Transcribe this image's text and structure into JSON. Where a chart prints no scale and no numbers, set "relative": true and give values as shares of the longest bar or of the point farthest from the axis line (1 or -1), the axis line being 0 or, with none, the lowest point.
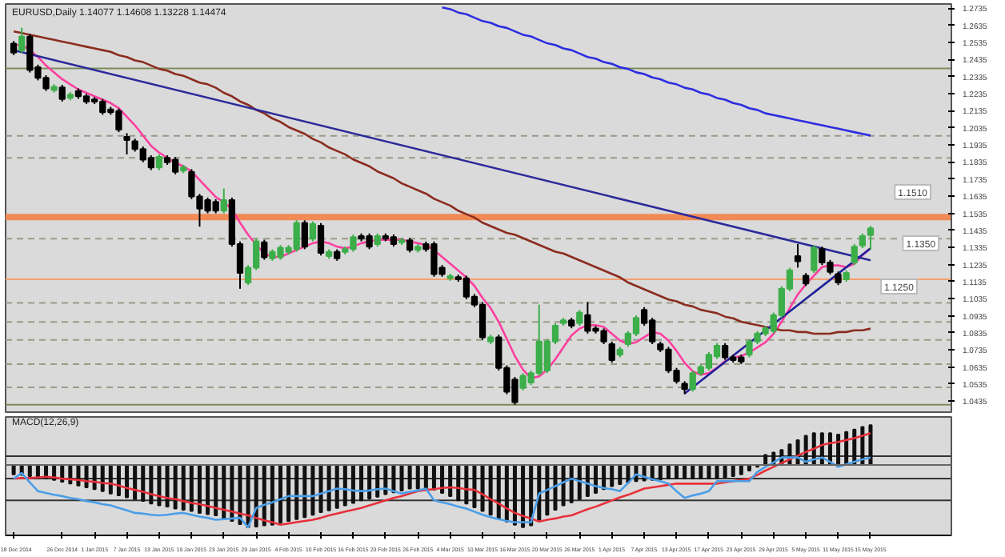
{
  "chart_data": [
    {
      "type": "candlestick",
      "title": "EURUSD,Daily 1.14077 1.14608 1.13228 1.14474",
      "categories": [
        null,
        null,
        null,
        null,
        null,
        null,
        null,
        null,
        null,
        null,
        null,
        null,
        null,
        null,
        null,
        null,
        null,
        null,
        null,
        null,
        null,
        null,
        null,
        null,
        null,
        null,
        null,
        null,
        null,
        null,
        null,
        null,
        null,
        null,
        null,
        null,
        null,
        null,
        null,
        null,
        null,
        null,
        null,
        null,
        null,
        null,
        null,
        null,
        null,
        null,
        null,
        null,
        null,
        null,
        null,
        null,
        null,
        null,
        null,
        null,
        null,
        null,
        null,
        null,
        null,
        null,
        null,
        null,
        null,
        null,
        null,
        null,
        null,
        null,
        null,
        null,
        null,
        null,
        null,
        null,
        null,
        null,
        null,
        null,
        null,
        null,
        null,
        null,
        null,
        null,
        null,
        null,
        null,
        null,
        null,
        null,
        null,
        null,
        null,
        null,
        null,
        null,
        null,
        null,
        null,
        null,
        null
      ],
      "colors": [
        "#000000",
        "#3cae4a",
        "#000000",
        "#000000",
        "#000000",
        "#3cae4a",
        "#000000",
        "#3cae4a",
        "#000000",
        "#000000",
        "#000000",
        "#000000",
        "#000000",
        "#000000",
        "#000000",
        "#000000",
        "#000000",
        "#000000",
        "#3cae4a",
        "#000000",
        "#000000",
        "#3cae4a",
        "#000000",
        "#000000",
        "#000000",
        "#000000",
        "#3cae4a",
        "#000000",
        "#000000",
        "#3cae4a",
        "#3cae4a",
        "#000000",
        "#3cae4a",
        "#3cae4a",
        "#3cae4a",
        "#3cae4a",
        "#000000",
        "#3cae4a",
        "#000000",
        "#3cae4a",
        "#000000",
        "#3cae4a",
        "#3cae4a",
        "#000000",
        "#000000",
        "#3cae4a",
        "#000000",
        "#000000",
        "#3cae4a",
        "#000000",
        "#3cae4a",
        "#000000",
        "#000000",
        "#000000",
        "#3cae4a",
        "#000000",
        "#000000",
        "#000000",
        "#000000",
        "#3cae4a",
        "#000000",
        "#000000",
        "#000000",
        "#3cae4a",
        "#3cae4a",
        "#3cae4a",
        "#3cae4a",
        "#3cae4a",
        "#3cae4a",
        "#000000",
        "#3cae4a",
        "#000000",
        "#000000",
        "#000000",
        "#000000",
        "#3cae4a",
        "#3cae4a",
        "#3cae4a",
        "#000000",
        "#000000",
        "#000000",
        "#000000",
        "#000000",
        "#000000",
        "#3cae4a",
        "#3cae4a",
        "#3cae4a",
        "#3cae4a",
        "#000000",
        "#000000",
        "#000000",
        "#3cae4a",
        "#3cae4a",
        "#3cae4a",
        "#3cae4a",
        "#3cae4a",
        "#3cae4a",
        "#000000",
        "#000000",
        "#3cae4a",
        "#000000",
        "#000000",
        "#000000",
        "#3cae4a",
        "#3cae4a",
        "#3cae4a",
        "#3cae4a"
      ],
      "ohlc": [
        [
          1.2528,
          1.2543,
          1.2461,
          1.2476
        ],
        [
          1.2488,
          1.2621,
          1.2473,
          1.2569
        ],
        [
          1.2569,
          1.2584,
          1.2359,
          1.2374
        ],
        [
          1.239,
          1.2405,
          1.2313,
          1.2328
        ],
        [
          1.2328,
          1.2343,
          1.2251,
          1.2266
        ],
        [
          1.2257,
          1.229,
          1.2242,
          1.2275
        ],
        [
          1.2272,
          1.2287,
          1.2189,
          1.2204
        ],
        [
          1.2211,
          1.2244,
          1.2196,
          1.2229
        ],
        [
          1.2251,
          1.2266,
          1.2205,
          1.222
        ],
        [
          1.222,
          1.2235,
          1.2174,
          1.2189
        ],
        [
          1.2201,
          1.2216,
          1.2174,
          1.2189
        ],
        [
          1.2189,
          1.2204,
          1.2112,
          1.2127
        ],
        [
          1.2143,
          1.2158,
          1.2112,
          1.2127
        ],
        [
          1.2133,
          1.2148,
          1.201,
          1.2025
        ],
        [
          1.1982,
          1.2004,
          1.188,
          1.1964
        ],
        [
          1.1957,
          1.1972,
          1.1896,
          1.1911
        ],
        [
          1.1911,
          1.1926,
          1.1834,
          1.1849
        ],
        [
          1.1859,
          1.1874,
          1.1788,
          1.1803
        ],
        [
          1.1803,
          1.188,
          1.1788,
          1.1865
        ],
        [
          1.1859,
          1.1874,
          1.1819,
          1.1834
        ],
        [
          1.1849,
          1.1864,
          1.1763,
          1.1778
        ],
        [
          1.1785,
          1.1818,
          1.177,
          1.1803
        ],
        [
          1.1778,
          1.1793,
          1.1618,
          1.1633
        ],
        [
          1.1633,
          1.1648,
          1.1457,
          1.1562
        ],
        [
          1.1612,
          1.1627,
          1.1535,
          1.155
        ],
        [
          1.1602,
          1.1617,
          1.1535,
          1.155
        ],
        [
          1.155,
          1.168,
          1.1535,
          1.1612
        ],
        [
          1.1612,
          1.1627,
          1.134,
          1.1355
        ],
        [
          1.1355,
          1.137,
          1.1093,
          1.1186
        ],
        [
          1.113,
          1.1232,
          1.1115,
          1.1217
        ],
        [
          1.1217,
          1.1386,
          1.1202,
          1.1371
        ],
        [
          1.1365,
          1.138,
          1.1263,
          1.1278
        ],
        [
          1.1272,
          1.1324,
          1.1257,
          1.1309
        ],
        [
          1.1278,
          1.1349,
          1.1263,
          1.1334
        ],
        [
          1.1309,
          1.1349,
          1.1294,
          1.1334
        ],
        [
          1.1325,
          1.1494,
          1.131,
          1.1479
        ],
        [
          1.1479,
          1.1494,
          1.1325,
          1.134
        ],
        [
          1.1386,
          1.1488,
          1.1371,
          1.1473
        ],
        [
          1.1463,
          1.1478,
          1.1288,
          1.1303
        ],
        [
          1.1284,
          1.1324,
          1.1269,
          1.1309
        ],
        [
          1.1309,
          1.1324,
          1.1257,
          1.1272
        ],
        [
          1.1309,
          1.134,
          1.1294,
          1.1325
        ],
        [
          1.1325,
          1.1411,
          1.131,
          1.1396
        ],
        [
          1.1402,
          1.1417,
          1.1371,
          1.1386
        ],
        [
          1.1402,
          1.1417,
          1.1325,
          1.134
        ],
        [
          1.1355,
          1.1417,
          1.134,
          1.1402
        ],
        [
          1.1402,
          1.1417,
          1.1371,
          1.1386
        ],
        [
          1.1396,
          1.1411,
          1.134,
          1.1355
        ],
        [
          1.1365,
          1.1392,
          1.135,
          1.1377
        ],
        [
          1.1377,
          1.1392,
          1.1306,
          1.1321
        ],
        [
          1.1321,
          1.1355,
          1.1306,
          1.134
        ],
        [
          1.1355,
          1.137,
          1.131,
          1.1325
        ],
        [
          1.1355,
          1.137,
          1.1164,
          1.1179
        ],
        [
          1.1217,
          1.1232,
          1.1164,
          1.1179
        ],
        [
          1.1155,
          1.1182,
          1.114,
          1.1167
        ],
        [
          1.1161,
          1.1176,
          1.1134,
          1.1149
        ],
        [
          1.1155,
          1.117,
          1.1032,
          1.1047
        ],
        [
          1.1047,
          1.1062,
          1.0985,
          1.1
        ],
        [
          1.1,
          1.1015,
          1.0794,
          1.0809
        ],
        [
          1.0784,
          1.0824,
          1.0769,
          1.0809
        ],
        [
          1.0809,
          1.0824,
          1.0615,
          1.063
        ],
        [
          1.063,
          1.0645,
          1.0476,
          1.0491
        ],
        [
          1.0562,
          1.0577,
          1.0414,
          1.0429
        ],
        [
          1.0513,
          1.0599,
          1.0498,
          1.0584
        ],
        [
          1.0544,
          1.0614,
          1.0529,
          1.0599
        ],
        [
          1.0599,
          1.1,
          1.0584,
          1.0784
        ],
        [
          1.0615,
          1.0799,
          1.06,
          1.0784
        ],
        [
          1.0784,
          1.0892,
          1.0769,
          1.0877
        ],
        [
          1.0892,
          1.0923,
          1.0877,
          1.0908
        ],
        [
          1.0908,
          1.0923,
          1.0862,
          1.0877
        ],
        [
          1.0892,
          1.0969,
          1.0877,
          1.0954
        ],
        [
          1.0939,
          1.1016,
          1.0831,
          1.0846
        ],
        [
          1.0861,
          1.0876,
          1.0831,
          1.0846
        ],
        [
          1.0846,
          1.0861,
          1.0769,
          1.0784
        ],
        [
          1.0769,
          1.0784,
          1.0661,
          1.0676
        ],
        [
          1.0707,
          1.0753,
          1.0692,
          1.0738
        ],
        [
          1.0769,
          1.0846,
          1.0754,
          1.0831
        ],
        [
          1.0831,
          1.0938,
          1.0816,
          1.0923
        ],
        [
          1.097,
          1.0985,
          1.0877,
          1.0892
        ],
        [
          1.0908,
          1.0923,
          1.0769,
          1.0784
        ],
        [
          1.0769,
          1.0784,
          1.0723,
          1.0738
        ],
        [
          1.0738,
          1.0753,
          1.06,
          1.0615
        ],
        [
          1.0615,
          1.063,
          1.0538,
          1.0553
        ],
        [
          1.0537,
          1.0552,
          1.0476,
          1.0506
        ],
        [
          1.0506,
          1.0614,
          1.0491,
          1.0599
        ],
        [
          1.0599,
          1.0651,
          1.0584,
          1.0636
        ],
        [
          1.063,
          1.0722,
          1.0615,
          1.0707
        ],
        [
          1.0698,
          1.0775,
          1.0683,
          1.076
        ],
        [
          1.076,
          1.0775,
          1.0677,
          1.0692
        ],
        [
          1.0692,
          1.0707,
          1.0661,
          1.0676
        ],
        [
          1.0692,
          1.0707,
          1.0652,
          1.0667
        ],
        [
          1.0707,
          1.0799,
          1.0692,
          1.0784
        ],
        [
          1.0784,
          1.0846,
          1.0769,
          1.0831
        ],
        [
          1.0831,
          1.0876,
          1.0816,
          1.0861
        ],
        [
          1.0846,
          1.0954,
          1.0831,
          1.0939
        ],
        [
          1.0939,
          1.1108,
          1.0924,
          1.1093
        ],
        [
          1.1093,
          1.1216,
          1.1078,
          1.1201
        ],
        [
          1.1284,
          1.1355,
          1.1217,
          1.1254
        ],
        [
          1.117,
          1.1185,
          1.1109,
          1.1124
        ],
        [
          1.1201,
          1.1349,
          1.1186,
          1.1334
        ],
        [
          1.1325,
          1.134,
          1.1232,
          1.1247
        ],
        [
          1.1247,
          1.1262,
          1.1177,
          1.1192
        ],
        [
          1.1179,
          1.1194,
          1.1115,
          1.113
        ],
        [
          1.1149,
          1.1201,
          1.1134,
          1.1186
        ],
        [
          1.1247,
          1.1355,
          1.1232,
          1.134
        ],
        [
          1.1346,
          1.1417,
          1.1331,
          1.1402
        ],
        [
          1.14077,
          1.14608,
          1.13228,
          1.14474
        ]
      ],
      "series": [
        {
          "type": "line",
          "color": "#ff3fa0",
          "values": [
            1.252,
            1.252,
            1.249,
            1.245,
            1.24,
            1.236,
            1.232,
            1.229,
            1.226,
            1.224,
            1.222,
            1.22,
            1.218,
            1.215,
            1.21,
            1.205,
            1.199,
            1.193,
            1.189,
            1.186,
            1.183,
            1.181,
            1.178,
            1.173,
            1.168,
            1.163,
            1.16,
            1.156,
            1.148,
            1.141,
            1.135,
            1.13,
            1.128,
            1.128,
            1.13,
            1.132,
            1.134,
            1.136,
            1.137,
            1.136,
            1.134,
            1.133,
            1.134,
            1.136,
            1.137,
            1.138,
            1.138,
            1.138,
            1.138,
            1.137,
            1.136,
            1.135,
            1.132,
            1.128,
            1.124,
            1.12,
            1.116,
            1.111,
            1.104,
            1.098,
            1.09,
            1.08,
            1.07,
            1.062,
            1.057,
            1.058,
            1.062,
            1.068,
            1.075,
            1.082,
            1.086,
            1.088,
            1.088,
            1.087,
            1.083,
            1.079,
            1.077,
            1.078,
            1.081,
            1.084,
            1.083,
            1.079,
            1.073,
            1.066,
            1.061,
            1.059,
            1.06,
            1.063,
            1.067,
            1.069,
            1.07,
            1.072,
            1.075,
            1.078,
            1.083,
            1.09,
            1.098,
            1.106,
            1.112,
            1.117,
            1.122,
            1.123,
            1.123,
            1.122,
            1.124,
            1.129,
            1.133
          ]
        },
        {
          "type": "line",
          "color": "#8b2c1f",
          "values": [
            1.26,
            1.259,
            1.258,
            1.257,
            1.256,
            1.255,
            1.254,
            1.253,
            1.252,
            1.251,
            1.25,
            1.249,
            1.248,
            1.246,
            1.245,
            1.243,
            1.242,
            1.24,
            1.238,
            1.237,
            1.235,
            1.234,
            1.232,
            1.23,
            1.229,
            1.227,
            1.224,
            1.222,
            1.219,
            1.217,
            1.214,
            1.212,
            1.209,
            1.207,
            1.204,
            1.202,
            1.2,
            1.197,
            1.195,
            1.192,
            1.19,
            1.188,
            1.185,
            1.183,
            1.181,
            1.178,
            1.176,
            1.174,
            1.171,
            1.169,
            1.167,
            1.165,
            1.162,
            1.16,
            1.158,
            1.155,
            1.153,
            1.151,
            1.148,
            1.146,
            1.144,
            1.142,
            1.141,
            1.139,
            1.137,
            1.135,
            1.133,
            1.131,
            1.13,
            1.128,
            1.126,
            1.124,
            1.122,
            1.12,
            1.118,
            1.116,
            1.113,
            1.111,
            1.109,
            1.107,
            1.105,
            1.103,
            1.102,
            1.1,
            1.099,
            1.097,
            1.096,
            1.095,
            1.093,
            1.092,
            1.09,
            1.089,
            1.088,
            1.087,
            1.086,
            1.085,
            1.085,
            1.084,
            1.084,
            1.083,
            1.083,
            1.083,
            1.084,
            1.084,
            1.085,
            1.085,
            1.086
          ]
        },
        {
          "type": "line",
          "color": "#2d2de0",
          "values": [
            null,
            null,
            null,
            null,
            null,
            null,
            null,
            null,
            null,
            null,
            null,
            null,
            null,
            null,
            null,
            null,
            null,
            null,
            null,
            null,
            null,
            null,
            null,
            null,
            null,
            null,
            null,
            null,
            null,
            null,
            null,
            null,
            null,
            null,
            null,
            null,
            null,
            null,
            null,
            null,
            null,
            null,
            null,
            null,
            null,
            null,
            null,
            null,
            null,
            null,
            null,
            null,
            null,
            1.274,
            1.273,
            1.271,
            1.27,
            1.268,
            1.266,
            1.265,
            1.263,
            1.262,
            1.26,
            1.258,
            1.257,
            1.255,
            1.253,
            1.252,
            1.25,
            1.249,
            1.247,
            1.245,
            1.244,
            1.242,
            1.241,
            1.239,
            1.238,
            1.236,
            1.235,
            1.233,
            1.232,
            1.23,
            1.229,
            1.227,
            1.226,
            1.224,
            1.223,
            1.221,
            1.22,
            1.218,
            1.217,
            1.215,
            1.214,
            1.212,
            1.211,
            1.21,
            1.209,
            1.208,
            1.207,
            1.206,
            1.205,
            1.204,
            1.203,
            1.202,
            1.201,
            1.2,
            1.199
          ]
        },
        {
          "type": "line",
          "color": "#2a2a9a",
          "values": [
            1.249,
            null,
            null,
            null,
            null,
            null,
            null,
            null,
            null,
            null,
            null,
            null,
            null,
            null,
            null,
            null,
            null,
            null,
            null,
            null,
            null,
            null,
            null,
            null,
            null,
            null,
            null,
            null,
            null,
            null,
            null,
            null,
            null,
            null,
            null,
            null,
            null,
            null,
            null,
            null,
            null,
            null,
            null,
            null,
            null,
            null,
            null,
            null,
            null,
            null,
            null,
            null,
            null,
            null,
            null,
            null,
            null,
            null,
            null,
            null,
            null,
            null,
            null,
            null,
            null,
            null,
            null,
            null,
            null,
            null,
            null,
            null,
            null,
            null,
            null,
            null,
            null,
            null,
            null,
            null,
            null,
            null,
            null,
            null,
            null,
            null,
            null,
            null,
            null,
            null,
            null,
            null,
            null,
            null,
            null,
            null,
            null,
            null,
            null,
            null,
            null,
            null,
            null,
            null,
            null,
            null,
            1.126
          ]
        },
        {
          "type": "line",
          "color": "#1f1f9a",
          "values": [
            null,
            null,
            null,
            null,
            null,
            null,
            null,
            null,
            null,
            null,
            null,
            null,
            null,
            null,
            null,
            null,
            null,
            null,
            null,
            null,
            null,
            null,
            null,
            null,
            null,
            null,
            null,
            null,
            null,
            null,
            null,
            null,
            null,
            null,
            null,
            null,
            null,
            null,
            null,
            null,
            null,
            null,
            null,
            null,
            null,
            null,
            null,
            null,
            null,
            null,
            null,
            null,
            null,
            null,
            null,
            null,
            null,
            null,
            null,
            null,
            null,
            null,
            null,
            null,
            null,
            null,
            null,
            null,
            null,
            null,
            null,
            null,
            null,
            null,
            null,
            null,
            null,
            null,
            null,
            null,
            null,
            null,
            null,
            1.048,
            null,
            null,
            null,
            null,
            null,
            null,
            null,
            null,
            null,
            null,
            null,
            null,
            null,
            null,
            null,
            null,
            null,
            null,
            null,
            null,
            null,
            null,
            1.133
          ]
        }
      ],
      "ylim": [
        1.0371,
        1.276
      ],
      "yticks": [
        1.2735,
        1.2635,
        1.2535,
        1.2435,
        1.2335,
        1.2235,
        1.2135,
        1.2035,
        1.1935,
        1.1835,
        1.1735,
        1.1635,
        1.1535,
        1.1435,
        1.1335,
        1.1235,
        1.1135,
        1.1035,
        1.0935,
        1.0835,
        1.0735,
        1.0635,
        1.0535,
        1.0435
      ],
      "tick_labels": "y",
      "bands": [
        {
          "axis": "y",
          "from": 1.1494,
          "to": 1.1531,
          "color": "#f28a55"
        }
      ],
      "ref_lines": [
        {
          "axis": "y",
          "value": 1.2383,
          "color": "#7d8c5a",
          "line_style": "solid"
        },
        {
          "axis": "y",
          "value": 1.1988,
          "color": "#9a9a88",
          "line_style": "dashed"
        },
        {
          "axis": "y",
          "value": 1.1859,
          "color": "#9a9a88",
          "line_style": "dashed"
        },
        {
          "axis": "y",
          "value": 1.1386,
          "color": "#9a9a88",
          "line_style": "dashed"
        },
        {
          "axis": "y",
          "value": 1.1149,
          "color": "#f4a070",
          "line_style": "solid"
        },
        {
          "axis": "y",
          "value": 1.101,
          "color": "#9a9a88",
          "line_style": "dashed"
        },
        {
          "axis": "y",
          "value": 1.0899,
          "color": "#9a9a88",
          "line_style": "dashed"
        },
        {
          "axis": "y",
          "value": 1.0794,
          "color": "#9a9a88",
          "line_style": "dashed"
        },
        {
          "axis": "y",
          "value": 1.0652,
          "color": "#9a9a88",
          "line_style": "dashed"
        },
        {
          "axis": "y",
          "value": 1.0516,
          "color": "#9a9a88",
          "line_style": "dashed"
        },
        {
          "axis": "y",
          "value": 1.0414,
          "color": "#7d8c5a",
          "line_style": "solid"
        }
      ],
      "annotations": [
        "1.1510",
        "1.1350",
        "1.1250"
      ],
      "grid": false
    },
    {
      "type": "bar",
      "title": "MACD(12,26,9)",
      "relative": true,
      "categories": [
        "18 Dec 2014",
        null,
        null,
        null,
        null,
        null,
        "26 Dec 2014",
        null,
        null,
        null,
        "1 Jan 2015",
        null,
        null,
        null,
        "7 Jan 2015",
        null,
        null,
        null,
        "13 Jan 2015",
        null,
        null,
        null,
        "19 Jan 2015",
        null,
        null,
        null,
        "23 Jan 2015",
        null,
        null,
        null,
        "29 Jan 2015",
        null,
        null,
        null,
        "4 Feb 2015",
        null,
        null,
        null,
        "10 Feb 2015",
        null,
        null,
        null,
        "16 Feb 2015",
        null,
        null,
        null,
        "20 Feb 2015",
        null,
        null,
        null,
        "26 Feb 2015",
        null,
        null,
        null,
        "4 Mar 2015",
        null,
        null,
        null,
        "10 Mar 2015",
        null,
        null,
        null,
        "16 Mar 2015",
        null,
        null,
        null,
        "20 Mar 2015",
        null,
        null,
        null,
        "26 Mar 2015",
        null,
        null,
        null,
        "1 Apr 2015",
        null,
        null,
        null,
        "7 Apr 2015",
        null,
        null,
        null,
        "13 Apr 2015",
        null,
        null,
        null,
        "17 Apr 2015",
        null,
        null,
        null,
        "23 Apr 2015",
        null,
        null,
        null,
        "29 Apr 2015",
        null,
        null,
        null,
        "5 May 2015",
        null,
        null,
        null,
        "11 May 2015",
        null,
        null,
        null,
        "15 May 2015"
      ],
      "series": [
        {
          "type": "bar",
          "color": "#111111",
          "values": [
            -0.15,
            -0.16,
            -0.18,
            -0.2,
            -0.22,
            -0.24,
            -0.27,
            -0.3,
            -0.33,
            -0.36,
            -0.39,
            -0.42,
            -0.46,
            -0.49,
            -0.52,
            -0.55,
            -0.58,
            -0.62,
            -0.65,
            -0.67,
            -0.7,
            -0.72,
            -0.74,
            -0.77,
            -0.79,
            -0.81,
            -0.86,
            -0.9,
            -0.95,
            -1,
            -0.99,
            -0.97,
            -0.96,
            -0.93,
            -0.9,
            -0.87,
            -0.84,
            -0.8,
            -0.76,
            -0.73,
            -0.69,
            -0.65,
            -0.61,
            -0.57,
            -0.54,
            -0.51,
            -0.47,
            -0.44,
            -0.41,
            -0.38,
            -0.38,
            -0.38,
            -0.4,
            -0.45,
            -0.5,
            -0.57,
            -0.62,
            -0.68,
            -0.74,
            -0.8,
            -0.86,
            -0.91,
            -0.96,
            -1,
            -0.97,
            -0.88,
            -0.8,
            -0.72,
            -0.65,
            -0.6,
            -0.55,
            -0.5,
            -0.45,
            -0.39,
            -0.34,
            -0.31,
            -0.28,
            -0.26,
            -0.25,
            -0.24,
            -0.23,
            -0.22,
            -0.22,
            -0.22,
            -0.22,
            -0.22,
            -0.22,
            -0.22,
            -0.2,
            -0.18,
            -0.15,
            -0.09,
            -0.03,
            0.16,
            0.2,
            0.24,
            0.33,
            0.4,
            0.47,
            0.51,
            0.51,
            0.51,
            0.49,
            0.53,
            0.57,
            0.61,
            0.64
          ]
        },
        {
          "type": "line",
          "color": "#e8303a",
          "values": [
            -0.22,
            -0.21,
            -0.21,
            -0.2,
            -0.19,
            -0.2,
            -0.22,
            -0.23,
            -0.24,
            -0.26,
            -0.27,
            -0.29,
            -0.3,
            -0.33,
            -0.37,
            -0.4,
            -0.43,
            -0.47,
            -0.5,
            -0.53,
            -0.55,
            -0.58,
            -0.61,
            -0.63,
            -0.66,
            -0.69,
            -0.72,
            -0.75,
            -0.78,
            -0.81,
            -0.85,
            -0.89,
            -0.92,
            -0.96,
            -0.94,
            -0.92,
            -0.9,
            -0.88,
            -0.85,
            -0.81,
            -0.78,
            -0.75,
            -0.72,
            -0.69,
            -0.65,
            -0.61,
            -0.57,
            -0.53,
            -0.5,
            -0.46,
            -0.42,
            -0.4,
            -0.39,
            -0.37,
            -0.36,
            -0.37,
            -0.39,
            -0.4,
            -0.47,
            -0.55,
            -0.62,
            -0.7,
            -0.77,
            -0.82,
            -0.86,
            -0.91,
            -0.88,
            -0.86,
            -0.83,
            -0.81,
            -0.76,
            -0.71,
            -0.67,
            -0.62,
            -0.57,
            -0.52,
            -0.48,
            -0.43,
            -0.38,
            -0.36,
            -0.34,
            -0.32,
            -0.3,
            -0.3,
            -0.3,
            -0.3,
            -0.3,
            -0.3,
            -0.28,
            -0.26,
            -0.24,
            -0.22,
            -0.16,
            -0.09,
            -0.03,
            0.03,
            0.09,
            0.15,
            0.21,
            0.26,
            0.32,
            0.35,
            0.37,
            0.4,
            0.43,
            0.47,
            0.51
          ]
        },
        {
          "type": "line",
          "color": "#4a9ee8",
          "values": [
            -0.22,
            -0.13,
            -0.28,
            -0.42,
            -0.45,
            -0.48,
            -0.5,
            -0.53,
            -0.55,
            -0.58,
            -0.6,
            -0.63,
            -0.65,
            -0.69,
            -0.73,
            -0.77,
            -0.78,
            -0.8,
            -0.81,
            -0.8,
            -0.78,
            -0.77,
            -0.8,
            -0.83,
            -0.85,
            -0.88,
            -0.87,
            -0.86,
            -0.85,
            -1,
            -0.69,
            -0.64,
            -0.6,
            -0.55,
            -0.5,
            -0.5,
            -0.5,
            -0.5,
            -0.46,
            -0.42,
            -0.38,
            -0.39,
            -0.41,
            -0.42,
            -0.41,
            -0.39,
            -0.38,
            -0.42,
            -0.46,
            -0.43,
            -0.41,
            -0.38,
            -0.57,
            -0.6,
            -0.63,
            -0.67,
            -0.7,
            -0.75,
            -0.8,
            -0.84,
            -0.87,
            -0.9,
            -0.92,
            -0.92,
            -0.92,
            -0.46,
            -0.4,
            -0.34,
            -0.28,
            -0.22,
            -0.26,
            -0.3,
            -0.34,
            -0.37,
            -0.39,
            -0.42,
            -0.29,
            -0.15,
            -0.19,
            -0.23,
            -0.26,
            -0.3,
            -0.42,
            -0.53,
            -0.49,
            -0.46,
            -0.42,
            -0.26,
            -0.26,
            -0.26,
            -0.26,
            -0.26,
            -0.11,
            -0.03,
            0.04,
            0.12,
            0.12,
            0.12,
            0.05,
            0.09,
            0.12,
            0.05,
            -0.03,
            0.01,
            0.05,
            0.09,
            0.12
          ]
        }
      ],
      "ref_lines": [
        {
          "axis": "y",
          "value": 0.14,
          "color": "#333333",
          "line_style": "solid"
        },
        {
          "axis": "y",
          "value": -0.22,
          "color": "#333333",
          "line_style": "solid"
        },
        {
          "axis": "y",
          "value": -0.57,
          "color": "#333333",
          "line_style": "solid"
        }
      ],
      "tick_labels": "x",
      "grid": false
    }
  ]
}
